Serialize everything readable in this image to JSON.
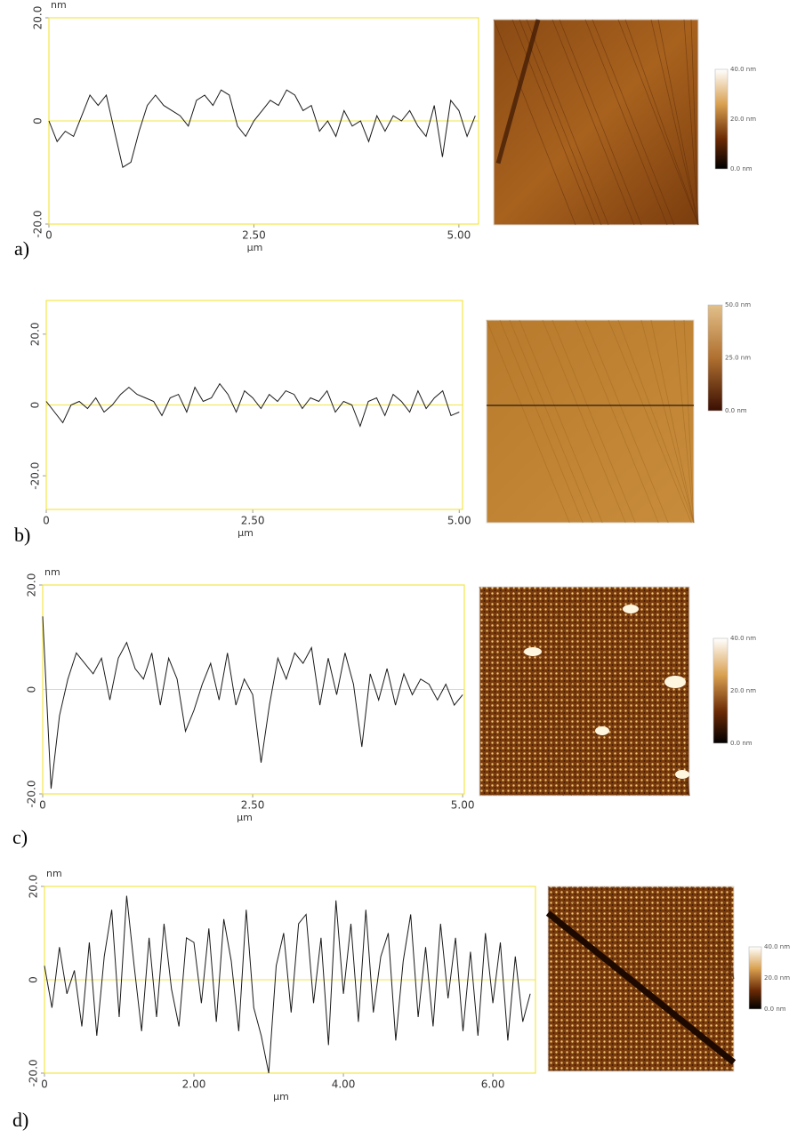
{
  "chart_data": [
    {
      "type": "line",
      "panel_label": "a)",
      "y_label": "nm",
      "x_label": "µm",
      "color": "#1a1a1a",
      "frame_color": "#f2e54a",
      "x": [
        0,
        0.1,
        0.2,
        0.3,
        0.4,
        0.5,
        0.6,
        0.7,
        0.8,
        0.9,
        1,
        1.1,
        1.2,
        1.3,
        1.4,
        1.5,
        1.6,
        1.7,
        1.8,
        1.9,
        2,
        2.1,
        2.2,
        2.3,
        2.4,
        2.5,
        2.6,
        2.7,
        2.8,
        2.9,
        3,
        3.1,
        3.2,
        3.3,
        3.4,
        3.5,
        3.6,
        3.7,
        3.8,
        3.9,
        4,
        4.1,
        4.2,
        4.3,
        4.4,
        4.5,
        4.6,
        4.7,
        4.8,
        4.9,
        5,
        5.1,
        5.2
      ],
      "values": [
        0,
        -4,
        -2,
        -3,
        1,
        5,
        3,
        5,
        -2,
        -9,
        -8,
        -2,
        3,
        5,
        3,
        2,
        1,
        -1,
        4,
        5,
        3,
        6,
        5,
        -1,
        -3,
        0,
        2,
        4,
        3,
        6,
        5,
        2,
        3,
        -2,
        0,
        -3,
        2,
        -1,
        0,
        -4,
        1,
        -2,
        1,
        0,
        2,
        -1,
        -3,
        3,
        -7,
        4,
        2,
        -3,
        1
      ],
      "xlim": [
        0,
        5.24
      ],
      "ylim": [
        -20,
        20
      ],
      "xticks": [
        0,
        {
          "value": 2.5,
          "label": "2.50"
        },
        {
          "value": 5,
          "label": "5.00"
        }
      ],
      "yticks": [
        {
          "value": -20,
          "label": "-20.0"
        },
        0,
        {
          "value": 20,
          "label": "20.0"
        }
      ],
      "colorbar_labels": [
        "40.0 nm",
        "20.0 nm",
        "0.0 nm"
      ]
    },
    {
      "type": "line",
      "panel_label": "b)",
      "x_label": "µm",
      "color": "#1a1a1a",
      "frame_color": "#f2e54a",
      "x": [
        0,
        0.1,
        0.2,
        0.3,
        0.4,
        0.5,
        0.6,
        0.7,
        0.8,
        0.9,
        1,
        1.1,
        1.2,
        1.3,
        1.4,
        1.5,
        1.6,
        1.7,
        1.8,
        1.9,
        2,
        2.1,
        2.2,
        2.3,
        2.4,
        2.5,
        2.6,
        2.7,
        2.8,
        2.9,
        3,
        3.1,
        3.2,
        3.3,
        3.4,
        3.5,
        3.6,
        3.7,
        3.8,
        3.9,
        4,
        4.1,
        4.2,
        4.3,
        4.4,
        4.5,
        4.6,
        4.7,
        4.8,
        4.9,
        5
      ],
      "values": [
        1,
        -2,
        -5,
        0,
        1,
        -1,
        2,
        -2,
        0,
        3,
        5,
        3,
        2,
        1,
        -3,
        2,
        3,
        -2,
        5,
        1,
        2,
        6,
        3,
        -2,
        4,
        2,
        -1,
        3,
        1,
        4,
        3,
        -1,
        2,
        1,
        4,
        -2,
        1,
        0,
        -6,
        1,
        2,
        -3,
        3,
        1,
        -2,
        4,
        -1,
        2,
        4,
        -3,
        -2
      ],
      "xlim": [
        0,
        5.04
      ],
      "ylim": [
        -29.5,
        29.5
      ],
      "xticks": [
        0,
        {
          "value": 2.5,
          "label": "2.50"
        },
        {
          "value": 5,
          "label": "5.00"
        }
      ],
      "yticks": [
        {
          "value": -20,
          "label": "-20.0"
        },
        0,
        {
          "value": 20,
          "label": "20.0"
        }
      ],
      "colorbar_labels": [
        "50.0 nm",
        "25.0 nm",
        "0.0 nm"
      ]
    },
    {
      "type": "line",
      "panel_label": "c)",
      "y_label": "nm",
      "x_label": "µm",
      "color": "#1a1a1a",
      "frame_color": "#f2e54a",
      "x": [
        0,
        0.1,
        0.2,
        0.3,
        0.4,
        0.5,
        0.6,
        0.7,
        0.8,
        0.9,
        1,
        1.1,
        1.2,
        1.3,
        1.4,
        1.5,
        1.6,
        1.7,
        1.8,
        1.9,
        2,
        2.1,
        2.2,
        2.3,
        2.4,
        2.5,
        2.6,
        2.7,
        2.8,
        2.9,
        3,
        3.1,
        3.2,
        3.3,
        3.4,
        3.5,
        3.6,
        3.7,
        3.8,
        3.9,
        4,
        4.1,
        4.2,
        4.3,
        4.4,
        4.5,
        4.6,
        4.7,
        4.8,
        4.9,
        5
      ],
      "values": [
        14,
        -19,
        -5,
        2,
        7,
        5,
        3,
        6,
        -2,
        6,
        9,
        4,
        2,
        7,
        -3,
        6,
        2,
        -8,
        -4,
        1,
        5,
        -2,
        7,
        -3,
        2,
        -1,
        -14,
        -3,
        6,
        2,
        7,
        5,
        8,
        -3,
        6,
        -1,
        7,
        1,
        -11,
        3,
        -2,
        4,
        -3,
        3,
        -1,
        2,
        1,
        -2,
        1,
        -3,
        -1
      ],
      "xlim": [
        0,
        5.02
      ],
      "ylim": [
        -20,
        20
      ],
      "xticks": [
        0,
        {
          "value": 2.5,
          "label": "2.50"
        },
        {
          "value": 5,
          "label": "5.00"
        }
      ],
      "yticks": [
        {
          "value": -20,
          "label": "-20.0"
        },
        0,
        {
          "value": 20,
          "label": "20.0"
        }
      ],
      "colorbar_labels": [
        "40.0 nm",
        "20.0 nm",
        "0.0 nm"
      ]
    },
    {
      "type": "line",
      "panel_label": "d)",
      "y_label": "nm",
      "x_label": "µm",
      "color": "#1a1a1a",
      "frame_color": "#f2e54a",
      "x": [
        0,
        0.1,
        0.2,
        0.3,
        0.4,
        0.5,
        0.6,
        0.7,
        0.8,
        0.9,
        1,
        1.1,
        1.2,
        1.3,
        1.4,
        1.5,
        1.6,
        1.7,
        1.8,
        1.9,
        2,
        2.1,
        2.2,
        2.3,
        2.4,
        2.5,
        2.6,
        2.7,
        2.8,
        2.9,
        3,
        3.1,
        3.2,
        3.3,
        3.4,
        3.5,
        3.6,
        3.7,
        3.8,
        3.9,
        4,
        4.1,
        4.2,
        4.3,
        4.4,
        4.5,
        4.6,
        4.7,
        4.8,
        4.9,
        5,
        5.1,
        5.2,
        5.3,
        5.4,
        5.5,
        5.6,
        5.7,
        5.8,
        5.9,
        6,
        6.1,
        6.2,
        6.3,
        6.4,
        6.5
      ],
      "values": [
        3,
        -6,
        7,
        -3,
        2,
        -10,
        8,
        -12,
        5,
        15,
        -8,
        18,
        3,
        -11,
        9,
        -8,
        12,
        -2,
        -10,
        9,
        8,
        -5,
        11,
        -9,
        13,
        4,
        -11,
        15,
        -6,
        -12,
        -20,
        3,
        10,
        -7,
        12,
        14,
        -5,
        9,
        -14,
        17,
        -3,
        12,
        -9,
        15,
        -7,
        5,
        10,
        -13,
        4,
        14,
        -8,
        7,
        -10,
        12,
        -4,
        9,
        -11,
        6,
        -12,
        10,
        -5,
        8,
        -13,
        5,
        -9,
        -3
      ],
      "xlim": [
        0,
        6.57
      ],
      "ylim": [
        -20,
        20
      ],
      "xticks": [
        0,
        {
          "value": 2,
          "label": "2.00"
        },
        {
          "value": 4,
          "label": "4.00"
        },
        {
          "value": 6,
          "label": "6.00"
        }
      ],
      "yticks": [
        {
          "value": -20,
          "label": "-20.0"
        },
        0,
        {
          "value": 20,
          "label": "20.0"
        }
      ],
      "colorbar_labels": [
        "40.0 nm",
        "20.0 nm",
        "0.0 nm"
      ]
    }
  ]
}
